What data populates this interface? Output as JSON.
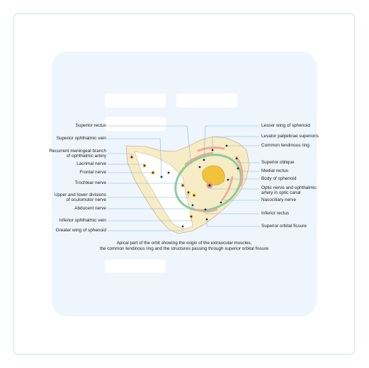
{
  "labels_left": [
    {
      "text": "Superior rectus"
    },
    {
      "text": "Superior ophthalmic vein"
    },
    {
      "text": "Recurrent meningeal branch\nof ophthalmic artery"
    },
    {
      "text": "Lacrimal nerve"
    },
    {
      "text": "Frontal nerve"
    },
    {
      "text": "Trochlear nerve"
    },
    {
      "text": "Upper and lower divisions\nof oculomotor nerve"
    },
    {
      "text": "Abducent nerve"
    },
    {
      "text": "Inferior ophthalmic vein"
    },
    {
      "text": "Greater wing of sphenoid"
    }
  ],
  "labels_right": [
    {
      "text": "Lesser wing of sphenoid"
    },
    {
      "text": "Levator palpebrae superioris"
    },
    {
      "text": "Common tendinous ring"
    },
    {
      "text": "Superior oblique"
    },
    {
      "text": "Medial rectus"
    },
    {
      "text": "Body of sphenoid"
    },
    {
      "text": "Optic nerve and ophthalmic\nartery in optic canal"
    },
    {
      "text": "Nasociliary nerve"
    },
    {
      "text": "Inferior rectus"
    },
    {
      "text": "Superior orbital fissure"
    }
  ],
  "caption": "Apical part of the orbit showing the origin of the extraocular muscles,\nthe common tendinous ring and the structures passing through superior orbital fissure",
  "colors": {
    "bone": "#f6ecc6",
    "bone_stroke": "#c9b98a",
    "muscle": "#f0a99a",
    "ring": "#8ccc9a",
    "optic": "#f2c33a",
    "leader": "#7fb6dc",
    "panel": "#eef5fc",
    "frame": "#cfe1f3"
  }
}
